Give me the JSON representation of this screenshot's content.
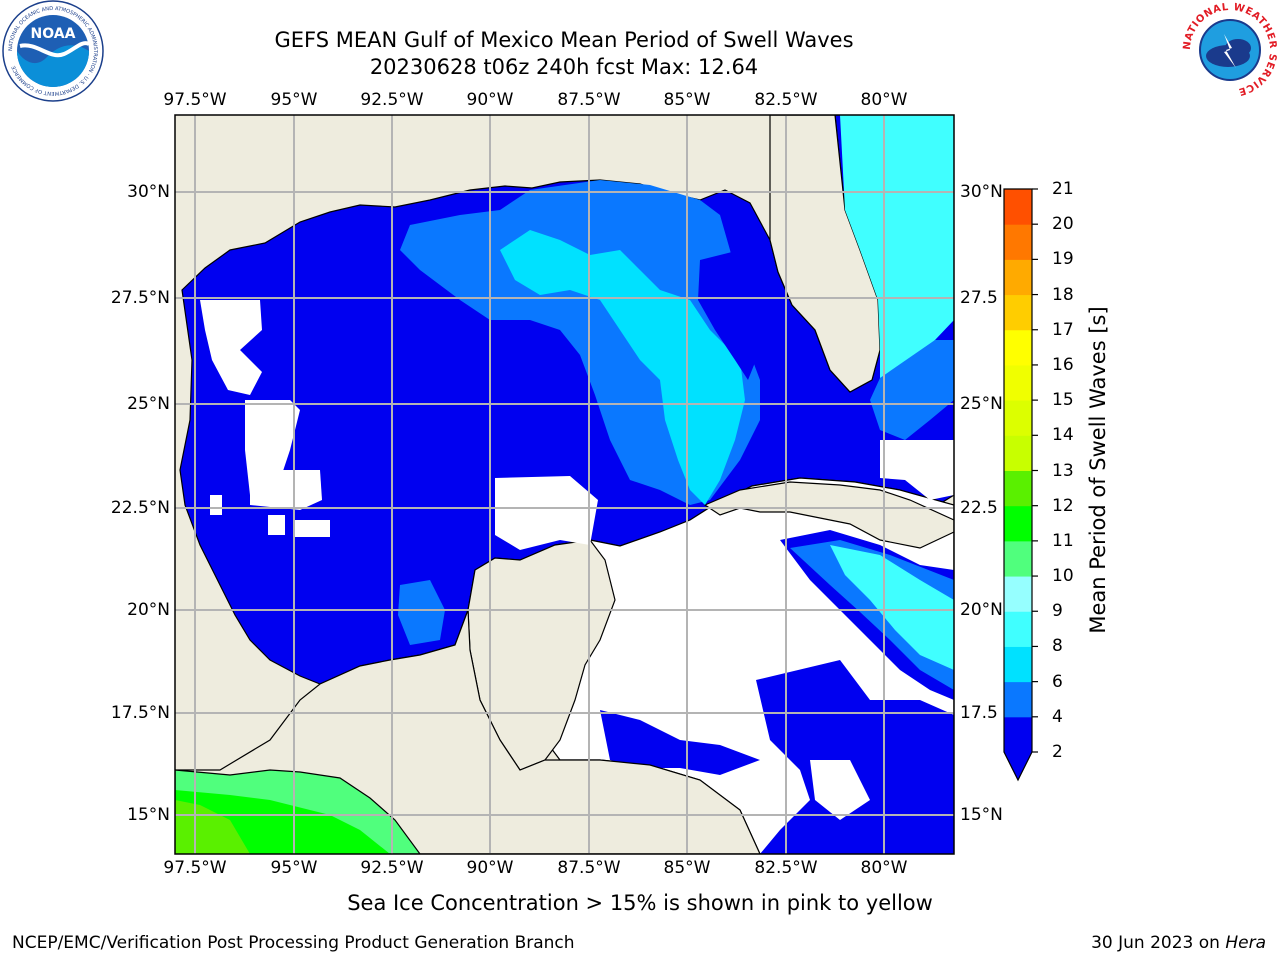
{
  "header": {
    "title_line1": "GEFS MEAN Gulf of Mexico Mean Period of Swell Waves",
    "title_line2": "20230628 t06z 240h fcst   Max: 12.64"
  },
  "logos": {
    "left": "NOAA",
    "left_ring_text": "NATIONAL OCEANIC AND ATMOSPHERIC ADMINISTRATION · U.S. DEPARTMENT OF COMMERCE",
    "right_ring_text": "NATIONAL WEATHER SERVICE"
  },
  "map": {
    "lon_ticks": [
      "97.5°W",
      "95°W",
      "92.5°W",
      "90°W",
      "87.5°W",
      "85°W",
      "82.5°W",
      "80°W"
    ],
    "lat_ticks_left": [
      "30°N",
      "27.5°N",
      "25°N",
      "22.5°N",
      "20°N",
      "17.5°N",
      "15°N"
    ],
    "lat_ticks_right": [
      "30°N",
      "27.5",
      "25°N",
      "22.5",
      "20°N",
      "17.5",
      "15°N"
    ],
    "colors": {
      "land": "#eeecde",
      "no_data": "#ffffff",
      "grid": "#b4b4b4",
      "coast": "#000000"
    }
  },
  "colorbar": {
    "title": "Mean Period of Swell Waves [s]",
    "labels": [
      "21",
      "20",
      "19",
      "18",
      "17",
      "16",
      "15",
      "14",
      "13",
      "12",
      "11",
      "10",
      "9",
      "8",
      "6",
      "4",
      "2"
    ],
    "level_values": [
      2,
      4,
      6,
      8,
      9,
      10,
      11,
      12,
      13,
      14,
      15,
      16,
      17,
      18,
      19,
      20,
      21
    ],
    "colors": [
      "#0000f0",
      "#0a78ff",
      "#00e1ff",
      "#40ffff",
      "#96ffff",
      "#50ff7d",
      "#00ff00",
      "#5af000",
      "#c8ff00",
      "#dcff00",
      "#f0ff00",
      "#ffff00",
      "#ffcd00",
      "#ffaa00",
      "#ff7800",
      "#ff5000",
      "#ff2800",
      "#ff0000"
    ]
  },
  "footnote": "Sea Ice Concentration > 15% is shown in pink to yellow",
  "footer": {
    "left": "NCEP/EMC/Verification Post Processing Product Generation Branch",
    "right_prefix": "30 Jun 2023 on ",
    "right_italic": "Hera"
  }
}
